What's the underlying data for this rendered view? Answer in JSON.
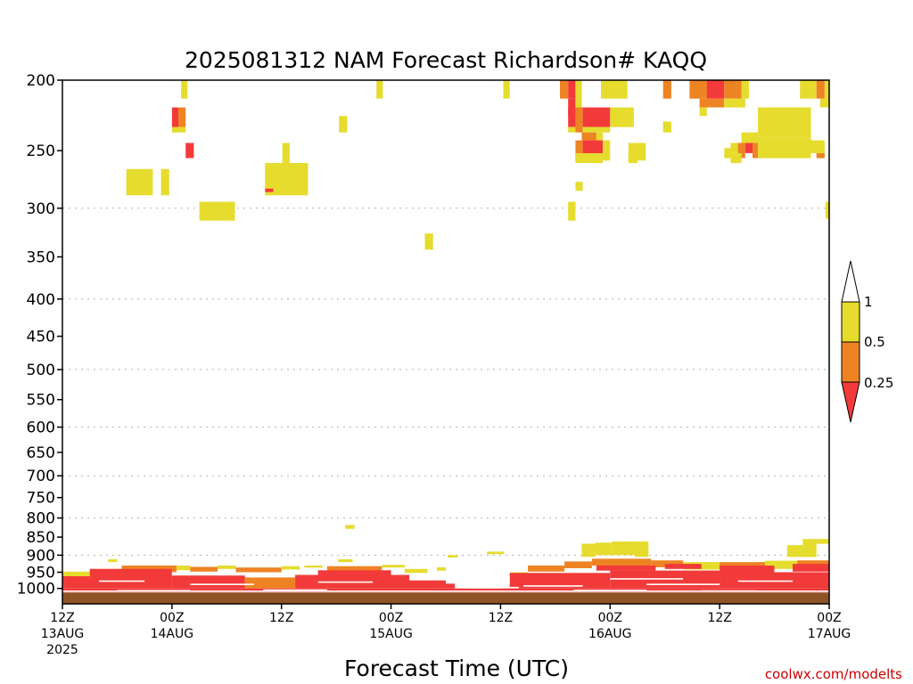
{
  "chart_data": {
    "type": "heatmap",
    "title": "2025081312 NAM Forecast Richardson# KAQQ",
    "xlabel": "Forecast Time (UTC)",
    "credit": "coolwx.com/modelts",
    "x_range_hours": [
      0,
      84
    ],
    "x_ticks": [
      {
        "hour": 0,
        "line1": "12Z",
        "line2": "13AUG",
        "line3": "2025"
      },
      {
        "hour": 12,
        "line1": "00Z",
        "line2": "14AUG",
        "line3": ""
      },
      {
        "hour": 24,
        "line1": "12Z",
        "line2": "",
        "line3": ""
      },
      {
        "hour": 36,
        "line1": "00Z",
        "line2": "15AUG",
        "line3": ""
      },
      {
        "hour": 48,
        "line1": "12Z",
        "line2": "",
        "line3": ""
      },
      {
        "hour": 60,
        "line1": "00Z",
        "line2": "16AUG",
        "line3": ""
      },
      {
        "hour": 72,
        "line1": "12Z",
        "line2": "",
        "line3": ""
      },
      {
        "hour": 84,
        "line1": "00Z",
        "line2": "17AUG",
        "line3": ""
      }
    ],
    "y_axis": {
      "label": "",
      "log_scale": true,
      "range_hpa": [
        200,
        1050
      ]
    },
    "y_ticks": [
      "200",
      "250",
      "300",
      "350",
      "400",
      "450",
      "500",
      "550",
      "600",
      "650",
      "700",
      "750",
      "800",
      "850",
      "900",
      "950",
      "1000"
    ],
    "grid_levels": [
      300,
      400,
      500,
      600,
      700,
      800,
      900
    ],
    "colors": {
      "lt_0_25": "#f23a3a",
      "0_25_0_5": "#ee8324",
      "0_5_1": "#e5dc2e",
      "ground": "#8f5426"
    },
    "legend": {
      "position": "right",
      "labels": [
        "1",
        "0.5",
        "0.25"
      ],
      "colors": [
        "#ffffff",
        "#e5dc2e",
        "#ee8324",
        "#f23a3a"
      ]
    },
    "cells": [
      {
        "h0": 13.0,
        "h1": 13.7,
        "p0": 200,
        "p1": 212,
        "c": "y"
      },
      {
        "h0": 34.4,
        "h1": 35.1,
        "p0": 200,
        "p1": 212,
        "c": "y"
      },
      {
        "h0": 48.3,
        "h1": 49.0,
        "p0": 200,
        "p1": 212,
        "c": "y"
      },
      {
        "h0": 54.5,
        "h1": 55.4,
        "p0": 200,
        "p1": 212,
        "c": "o"
      },
      {
        "h0": 55.4,
        "h1": 56.2,
        "p0": 200,
        "p1": 212,
        "c": "r"
      },
      {
        "h0": 56.2,
        "h1": 56.9,
        "p0": 200,
        "p1": 212,
        "c": "y"
      },
      {
        "h0": 59.0,
        "h1": 61.9,
        "p0": 200,
        "p1": 212,
        "c": "y"
      },
      {
        "h0": 65.8,
        "h1": 66.7,
        "p0": 200,
        "p1": 212,
        "c": "o"
      },
      {
        "h0": 68.7,
        "h1": 70.6,
        "p0": 200,
        "p1": 212,
        "c": "o"
      },
      {
        "h0": 70.6,
        "h1": 72.5,
        "p0": 200,
        "p1": 212,
        "c": "r"
      },
      {
        "h0": 72.5,
        "h1": 74.4,
        "p0": 200,
        "p1": 212,
        "c": "o"
      },
      {
        "h0": 74.4,
        "h1": 75.2,
        "p0": 200,
        "p1": 212,
        "c": "y"
      },
      {
        "h0": 80.8,
        "h1": 82.6,
        "p0": 200,
        "p1": 212,
        "c": "y"
      },
      {
        "h0": 82.6,
        "h1": 83.5,
        "p0": 200,
        "p1": 212,
        "c": "o"
      },
      {
        "h0": 83.5,
        "h1": 84.0,
        "p0": 200,
        "p1": 212,
        "c": "y"
      },
      {
        "h0": 69.8,
        "h1": 72.5,
        "p0": 212,
        "p1": 218,
        "c": "o"
      },
      {
        "h0": 72.5,
        "h1": 74.8,
        "p0": 212,
        "p1": 218,
        "c": "y"
      },
      {
        "h0": 55.4,
        "h1": 56.2,
        "p0": 212,
        "p1": 224,
        "c": "r"
      },
      {
        "h0": 56.2,
        "h1": 56.9,
        "p0": 212,
        "p1": 224,
        "c": "y"
      },
      {
        "h0": 83.0,
        "h1": 84.0,
        "p0": 212,
        "p1": 218,
        "c": "y"
      },
      {
        "h0": 12.0,
        "h1": 12.7,
        "p0": 218,
        "p1": 232,
        "c": "r"
      },
      {
        "h0": 12.7,
        "h1": 13.5,
        "p0": 218,
        "p1": 232,
        "c": "o"
      },
      {
        "h0": 55.4,
        "h1": 56.2,
        "p0": 218,
        "p1": 232,
        "c": "r"
      },
      {
        "h0": 56.2,
        "h1": 57.0,
        "p0": 218,
        "p1": 232,
        "c": "o"
      },
      {
        "h0": 57.0,
        "h1": 60.0,
        "p0": 218,
        "p1": 232,
        "c": "r"
      },
      {
        "h0": 60.0,
        "h1": 62.6,
        "p0": 218,
        "p1": 232,
        "c": "y"
      },
      {
        "h0": 69.8,
        "h1": 70.6,
        "p0": 218,
        "p1": 224,
        "c": "y"
      },
      {
        "h0": 76.2,
        "h1": 82.0,
        "p0": 218,
        "p1": 240,
        "c": "y"
      },
      {
        "h0": 30.3,
        "h1": 31.2,
        "p0": 224,
        "p1": 236,
        "c": "y"
      },
      {
        "h0": 65.8,
        "h1": 66.7,
        "p0": 228,
        "p1": 236,
        "c": "y"
      },
      {
        "h0": 12.0,
        "h1": 13.5,
        "p0": 232,
        "p1": 236,
        "c": "y"
      },
      {
        "h0": 55.4,
        "h1": 56.2,
        "p0": 232,
        "p1": 236,
        "c": "y"
      },
      {
        "h0": 56.2,
        "h1": 57.0,
        "p0": 232,
        "p1": 236,
        "c": "o"
      },
      {
        "h0": 57.0,
        "h1": 60.0,
        "p0": 232,
        "p1": 236,
        "c": "y"
      },
      {
        "h0": 56.9,
        "h1": 58.5,
        "p0": 236,
        "p1": 242,
        "c": "o"
      },
      {
        "h0": 58.5,
        "h1": 59.2,
        "p0": 236,
        "p1": 242,
        "c": "y"
      },
      {
        "h0": 74.4,
        "h1": 76.2,
        "p0": 236,
        "p1": 244,
        "c": "y"
      },
      {
        "h0": 76.2,
        "h1": 82.0,
        "p0": 240,
        "p1": 256,
        "c": "y"
      },
      {
        "h0": 82.0,
        "h1": 83.5,
        "p0": 242,
        "p1": 252,
        "c": "y"
      },
      {
        "h0": 13.5,
        "h1": 14.4,
        "p0": 244,
        "p1": 256,
        "c": "r"
      },
      {
        "h0": 24.1,
        "h1": 24.9,
        "p0": 244,
        "p1": 260,
        "c": "y"
      },
      {
        "h0": 56.2,
        "h1": 57.0,
        "p0": 242,
        "p1": 258,
        "c": "o"
      },
      {
        "h0": 57.0,
        "h1": 59.2,
        "p0": 242,
        "p1": 258,
        "c": "r"
      },
      {
        "h0": 59.2,
        "h1": 60.0,
        "p0": 242,
        "p1": 258,
        "c": "y"
      },
      {
        "h0": 62.0,
        "h1": 63.9,
        "p0": 244,
        "p1": 258,
        "c": "y"
      },
      {
        "h0": 73.2,
        "h1": 74.0,
        "p0": 244,
        "p1": 252,
        "c": "y"
      },
      {
        "h0": 74.0,
        "h1": 74.8,
        "p0": 244,
        "p1": 256,
        "c": "o"
      },
      {
        "h0": 74.8,
        "h1": 75.6,
        "p0": 244,
        "p1": 252,
        "c": "r"
      },
      {
        "h0": 75.6,
        "h1": 76.2,
        "p0": 244,
        "p1": 256,
        "c": "o"
      },
      {
        "h0": 82.6,
        "h1": 83.5,
        "p0": 252,
        "p1": 256,
        "c": "o"
      },
      {
        "h0": 72.5,
        "h1": 73.3,
        "p0": 248,
        "p1": 256,
        "c": "y"
      },
      {
        "h0": 56.2,
        "h1": 59.2,
        "p0": 252,
        "p1": 260,
        "c": "y"
      },
      {
        "h0": 62.0,
        "h1": 63.0,
        "p0": 252,
        "p1": 260,
        "c": "y"
      },
      {
        "h0": 73.2,
        "h1": 74.4,
        "p0": 252,
        "p1": 260,
        "c": "y"
      },
      {
        "h0": 7.0,
        "h1": 9.9,
        "p0": 265,
        "p1": 288,
        "c": "y"
      },
      {
        "h0": 10.8,
        "h1": 11.7,
        "p0": 265,
        "p1": 288,
        "c": "y"
      },
      {
        "h0": 22.2,
        "h1": 26.9,
        "p0": 260,
        "p1": 288,
        "c": "y"
      },
      {
        "h0": 22.2,
        "h1": 23.1,
        "p0": 282,
        "p1": 285,
        "c": "r"
      },
      {
        "h0": 56.2,
        "h1": 57.0,
        "p0": 276,
        "p1": 284,
        "c": "y"
      },
      {
        "h0": 15.0,
        "h1": 18.9,
        "p0": 294,
        "p1": 312,
        "c": "y"
      },
      {
        "h0": 55.4,
        "h1": 56.2,
        "p0": 294,
        "p1": 312,
        "c": "y"
      },
      {
        "h0": 83.6,
        "h1": 84.0,
        "p0": 294,
        "p1": 310,
        "c": "y"
      },
      {
        "h0": 39.7,
        "h1": 40.6,
        "p0": 325,
        "p1": 342,
        "c": "y"
      },
      {
        "h0": 31.0,
        "h1": 32.0,
        "p0": 818,
        "p1": 828,
        "c": "y"
      },
      {
        "h0": 56.9,
        "h1": 58.4,
        "p0": 868,
        "p1": 905,
        "c": "y"
      },
      {
        "h0": 58.4,
        "h1": 60.2,
        "p0": 865,
        "p1": 900,
        "c": "y"
      },
      {
        "h0": 60.2,
        "h1": 62.7,
        "p0": 862,
        "p1": 900,
        "c": "y"
      },
      {
        "h0": 62.7,
        "h1": 64.2,
        "p0": 862,
        "p1": 905,
        "c": "y"
      },
      {
        "h0": 79.4,
        "h1": 81.1,
        "p0": 872,
        "p1": 905,
        "c": "y"
      },
      {
        "h0": 81.1,
        "h1": 82.6,
        "p0": 855,
        "p1": 905,
        "c": "y"
      },
      {
        "h0": 82.6,
        "h1": 84.0,
        "p0": 855,
        "p1": 868,
        "c": "y"
      },
      {
        "h0": 46.5,
        "h1": 48.4,
        "p0": 890,
        "p1": 897,
        "c": "y"
      },
      {
        "h0": 42.2,
        "h1": 43.3,
        "p0": 900,
        "p1": 907,
        "c": "y"
      },
      {
        "h0": 5.0,
        "h1": 6.0,
        "p0": 912,
        "p1": 920,
        "c": "y"
      },
      {
        "h0": 30.2,
        "h1": 31.8,
        "p0": 912,
        "p1": 920,
        "c": "y"
      },
      {
        "h0": 0.0,
        "h1": 3.0,
        "p0": 948,
        "p1": 962,
        "c": "y"
      },
      {
        "h0": 3.0,
        "h1": 6.5,
        "p0": 940,
        "p1": 956,
        "c": "o"
      },
      {
        "h0": 6.5,
        "h1": 12.5,
        "p0": 930,
        "p1": 950,
        "c": "o"
      },
      {
        "h0": 12.5,
        "h1": 14.0,
        "p0": 930,
        "p1": 944,
        "c": "y"
      },
      {
        "h0": 14.0,
        "h1": 17.0,
        "p0": 934,
        "p1": 948,
        "c": "o"
      },
      {
        "h0": 17.0,
        "h1": 19.0,
        "p0": 930,
        "p1": 940,
        "c": "y"
      },
      {
        "h0": 19.0,
        "h1": 24.0,
        "p0": 936,
        "p1": 950,
        "c": "o"
      },
      {
        "h0": 24.0,
        "h1": 26.0,
        "p0": 932,
        "p1": 942,
        "c": "y"
      },
      {
        "h0": 26.5,
        "h1": 28.5,
        "p0": 930,
        "p1": 936,
        "c": "y"
      },
      {
        "h0": 29.0,
        "h1": 35.0,
        "p0": 932,
        "p1": 946,
        "c": "o"
      },
      {
        "h0": 35.0,
        "h1": 37.5,
        "p0": 928,
        "p1": 936,
        "c": "y"
      },
      {
        "h0": 37.5,
        "h1": 40.0,
        "p0": 940,
        "p1": 952,
        "c": "y"
      },
      {
        "h0": 41.0,
        "h1": 43.0,
        "p0": 935,
        "p1": 945,
        "c": "y"
      },
      {
        "h0": 48.6,
        "h1": 51.0,
        "p0": 950,
        "p1": 962,
        "c": "y"
      },
      {
        "h0": 51.0,
        "h1": 55.0,
        "p0": 930,
        "p1": 948,
        "c": "o"
      },
      {
        "h0": 55.0,
        "h1": 58.0,
        "p0": 918,
        "p1": 938,
        "c": "o"
      },
      {
        "h0": 58.0,
        "h1": 64.5,
        "p0": 910,
        "p1": 930,
        "c": "o"
      },
      {
        "h0": 64.5,
        "h1": 68.0,
        "p0": 915,
        "p1": 935,
        "c": "o"
      },
      {
        "h0": 68.0,
        "h1": 72.0,
        "p0": 920,
        "p1": 942,
        "c": "y"
      },
      {
        "h0": 72.0,
        "h1": 77.0,
        "p0": 920,
        "p1": 940,
        "c": "o"
      },
      {
        "h0": 77.0,
        "h1": 80.5,
        "p0": 916,
        "p1": 940,
        "c": "y"
      },
      {
        "h0": 80.5,
        "h1": 84.0,
        "p0": 915,
        "p1": 942,
        "c": "o"
      },
      {
        "h0": 0.0,
        "h1": 12.0,
        "p0": 962,
        "p1": 1000,
        "c": "r"
      },
      {
        "h0": 12.0,
        "h1": 20.0,
        "p0": 960,
        "p1": 1000,
        "c": "r"
      },
      {
        "h0": 20.0,
        "h1": 25.5,
        "p0": 966,
        "p1": 1000,
        "c": "o"
      },
      {
        "h0": 25.5,
        "h1": 38.0,
        "p0": 958,
        "p1": 1000,
        "c": "r"
      },
      {
        "h0": 38.0,
        "h1": 43.0,
        "p0": 975,
        "p1": 1000,
        "c": "r"
      },
      {
        "h0": 49.0,
        "h1": 60.0,
        "p0": 952,
        "p1": 1000,
        "c": "r"
      },
      {
        "h0": 60.0,
        "h1": 72.0,
        "p0": 945,
        "p1": 1000,
        "c": "r"
      },
      {
        "h0": 72.0,
        "h1": 84.0,
        "p0": 950,
        "p1": 1000,
        "c": "r"
      },
      {
        "h0": 0.0,
        "h1": 84.0,
        "p0": 1000,
        "p1": 1012,
        "c": "r"
      },
      {
        "h0": 3.0,
        "h1": 12.0,
        "p0": 940,
        "p1": 962,
        "c": "r"
      },
      {
        "h0": 28.0,
        "h1": 36.0,
        "p0": 944,
        "p1": 958,
        "c": "r"
      },
      {
        "h0": 58.5,
        "h1": 65.0,
        "p0": 930,
        "p1": 945,
        "c": "r"
      },
      {
        "h0": 66.0,
        "h1": 70.0,
        "p0": 925,
        "p1": 940,
        "c": "r"
      },
      {
        "h0": 72.0,
        "h1": 78.0,
        "p0": 930,
        "p1": 950,
        "c": "r"
      },
      {
        "h0": 80.0,
        "h1": 84.0,
        "p0": 925,
        "p1": 948,
        "c": "r"
      }
    ],
    "white_streaks": [
      {
        "h0": 4.0,
        "h1": 9.0,
        "p": 975
      },
      {
        "h0": 14.0,
        "h1": 21.0,
        "p": 985
      },
      {
        "h0": 28.0,
        "h1": 34.0,
        "p": 978
      },
      {
        "h0": 50.5,
        "h1": 57.0,
        "p": 990
      },
      {
        "h0": 60.0,
        "h1": 68.0,
        "p": 968
      },
      {
        "h0": 64.0,
        "h1": 72.0,
        "p": 985
      },
      {
        "h0": 74.0,
        "h1": 80.0,
        "p": 975
      },
      {
        "h0": 6.0,
        "h1": 14.0,
        "p": 1005
      },
      {
        "h0": 22.0,
        "h1": 29.0,
        "p": 1003
      },
      {
        "h0": 45.0,
        "h1": 50.0,
        "p": 995
      },
      {
        "h0": 56.0,
        "h1": 64.0,
        "p": 1004
      },
      {
        "h0": 70.0,
        "h1": 76.0,
        "p": 1006
      }
    ],
    "white_gaps": [
      {
        "h0": 42.0,
        "h1": 49.0,
        "p0": 920,
        "p1": 985
      },
      {
        "h0": 44.0,
        "h1": 48.0,
        "p0": 985,
        "p1": 1000
      }
    ],
    "ground_band_hpa": [
      1013,
      1032
    ]
  }
}
